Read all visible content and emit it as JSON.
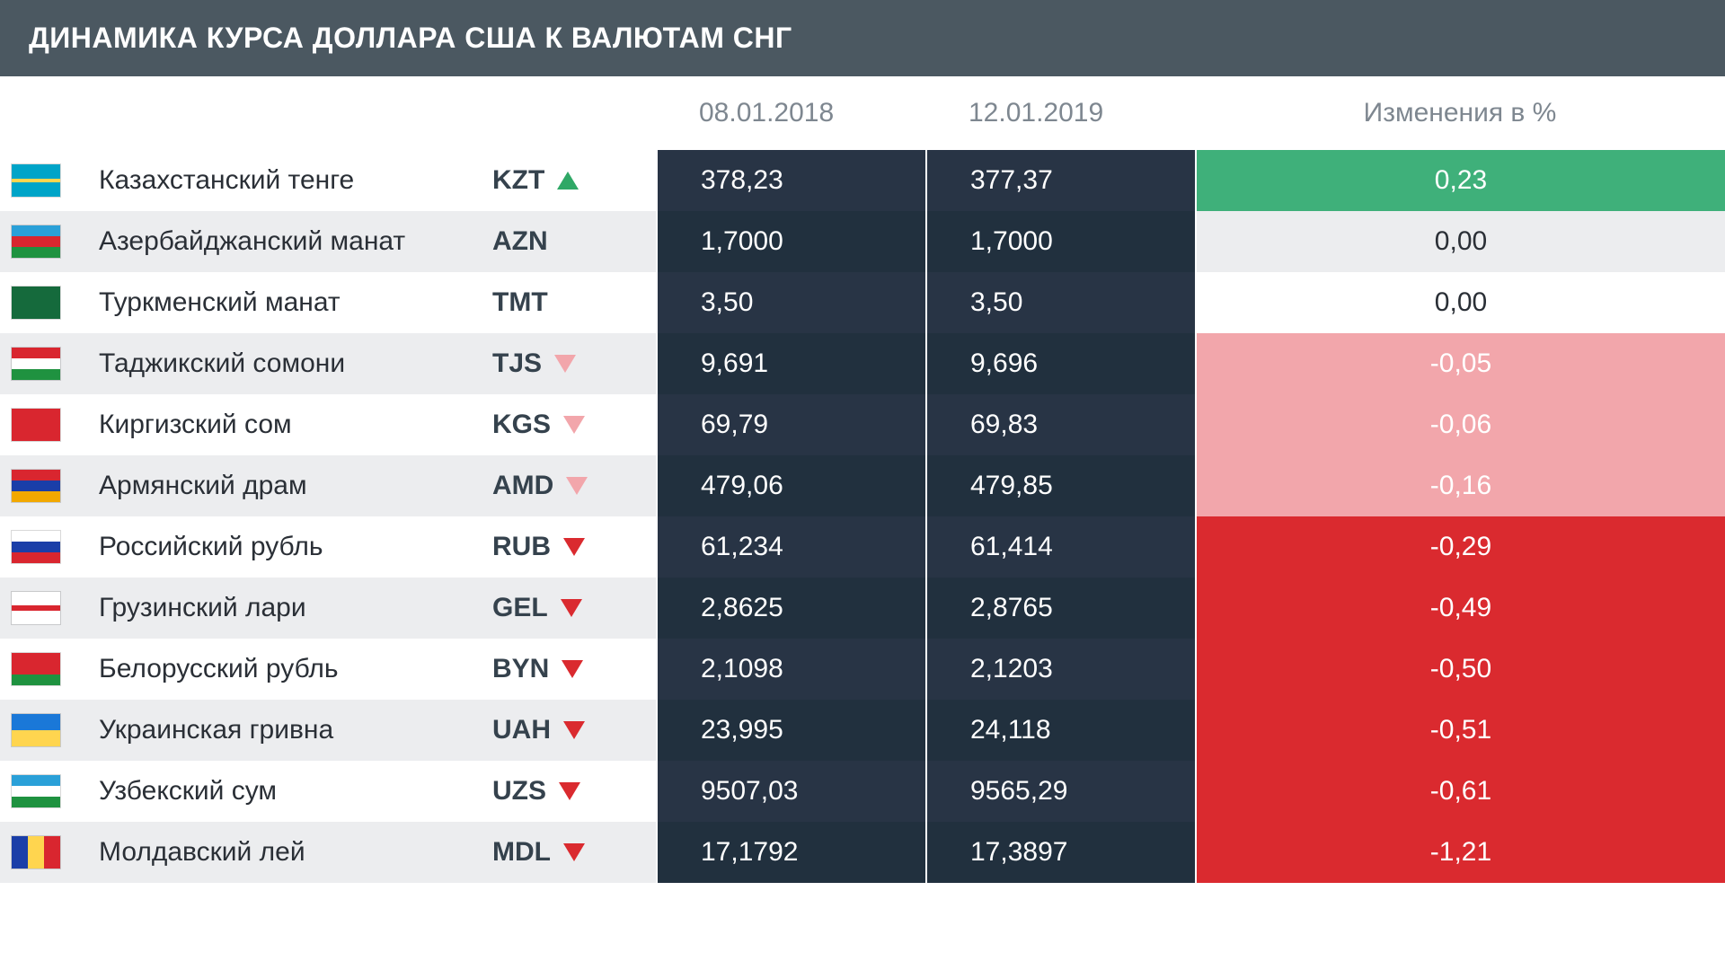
{
  "title": "ДИНАМИКА КУРСА ДОЛЛАРА США К ВАЛЮТАМ СНГ",
  "columns": {
    "date1": "08.01.2018",
    "date2": "12.01.2019",
    "change": "Изменения в %"
  },
  "colors": {
    "header_bg": "#4b5861",
    "stripe_a": "#ffffff",
    "stripe_b": "#ecedef",
    "value_bg_a": "#283445",
    "value_bg_b": "#21303e",
    "text_dark": "#2a2f36",
    "text_muted": "#7e8790",
    "arrow_up": "#2fa866",
    "arrow_down_light": "#f2a6ab",
    "arrow_down_dark": "#da2a2f",
    "change_up_bg": "#3fb07a",
    "change_up_text": "#ffffff",
    "change_neutral_text": "#2a2f36",
    "change_down_light_bg": "#f2a6ab",
    "change_down_light_text": "#ffffff",
    "change_down_dark_bg": "#da2a2f",
    "change_down_dark_text": "#ffffff"
  },
  "rows": [
    {
      "name": "Казахстанский тенге",
      "code": "KZT",
      "arrow": "up",
      "arrow_color": "#2fa866",
      "v1": "378,23",
      "v2": "377,37",
      "change": "0,23",
      "change_bg": "#3fb07a",
      "change_text": "#ffffff",
      "flag_bands": [
        {
          "bg": "#00a4c8",
          "flex": 1
        },
        {
          "bg": "#ffd54f",
          "flex": 0.3
        },
        {
          "bg": "#00a4c8",
          "flex": 1
        }
      ]
    },
    {
      "name": "Азербайджанский манат",
      "code": "AZN",
      "arrow": "none",
      "arrow_color": "",
      "v1": "1,7000",
      "v2": "1,7000",
      "change": "0,00",
      "change_bg": "transparent",
      "change_text": "#2a2f36",
      "flag_bands": [
        {
          "bg": "#2aa0d8",
          "flex": 1
        },
        {
          "bg": "#d9262f",
          "flex": 1
        },
        {
          "bg": "#1f9240",
          "flex": 1
        }
      ]
    },
    {
      "name": "Туркменский манат",
      "code": "TMT",
      "arrow": "none",
      "arrow_color": "",
      "v1": "3,50",
      "v2": "3,50",
      "change": "0,00",
      "change_bg": "transparent",
      "change_text": "#2a2f36",
      "flag_bands": [
        {
          "bg": "#156a3c",
          "flex": 1
        }
      ]
    },
    {
      "name": "Таджикский сомони",
      "code": "TJS",
      "arrow": "down",
      "arrow_color": "#f2a6ab",
      "v1": "9,691",
      "v2": "9,696",
      "change": "-0,05",
      "change_bg": "#f2a6ab",
      "change_text": "#ffffff",
      "flag_bands": [
        {
          "bg": "#d9262f",
          "flex": 1
        },
        {
          "bg": "#ffffff",
          "flex": 1
        },
        {
          "bg": "#1f9240",
          "flex": 1
        }
      ]
    },
    {
      "name": "Киргизский сом",
      "code": "KGS",
      "arrow": "down",
      "arrow_color": "#f2a6ab",
      "v1": "69,79",
      "v2": "69,83",
      "change": "-0,06",
      "change_bg": "#f2a6ab",
      "change_text": "#ffffff",
      "flag_bands": [
        {
          "bg": "#d9262f",
          "flex": 1
        }
      ]
    },
    {
      "name": "Армянский драм",
      "code": "AMD",
      "arrow": "down",
      "arrow_color": "#f2a6ab",
      "v1": "479,06",
      "v2": "479,85",
      "change": "-0,16",
      "change_bg": "#f2a6ab",
      "change_text": "#ffffff",
      "flag_bands": [
        {
          "bg": "#d9262f",
          "flex": 1
        },
        {
          "bg": "#1a3ea8",
          "flex": 1
        },
        {
          "bg": "#f2a800",
          "flex": 1
        }
      ]
    },
    {
      "name": "Российский рубль",
      "code": "RUB",
      "arrow": "down",
      "arrow_color": "#da2a2f",
      "v1": "61,234",
      "v2": "61,414",
      "change": "-0,29",
      "change_bg": "#da2a2f",
      "change_text": "#ffffff",
      "flag_bands": [
        {
          "bg": "#ffffff",
          "flex": 1
        },
        {
          "bg": "#1a3ea8",
          "flex": 1
        },
        {
          "bg": "#d9262f",
          "flex": 1
        }
      ]
    },
    {
      "name": "Грузинский лари",
      "code": "GEL",
      "arrow": "down",
      "arrow_color": "#da2a2f",
      "v1": "2,8625",
      "v2": "2,8765",
      "change": "-0,49",
      "change_bg": "#da2a2f",
      "change_text": "#ffffff",
      "flag_bands": [
        {
          "bg": "#ffffff",
          "flex": 1
        },
        {
          "bg": "#d9262f",
          "flex": 0.4
        },
        {
          "bg": "#ffffff",
          "flex": 1
        }
      ]
    },
    {
      "name": "Белорусский рубль",
      "code": "BYN",
      "arrow": "down",
      "arrow_color": "#da2a2f",
      "v1": "2,1098",
      "v2": "2,1203",
      "change": "-0,50",
      "change_bg": "#da2a2f",
      "change_text": "#ffffff",
      "flag_bands": [
        {
          "bg": "#d9262f",
          "flex": 2
        },
        {
          "bg": "#1f9240",
          "flex": 1
        }
      ]
    },
    {
      "name": "Украинская гривна",
      "code": "UAH",
      "arrow": "down",
      "arrow_color": "#da2a2f",
      "v1": "23,995",
      "v2": "24,118",
      "change": "-0,51",
      "change_bg": "#da2a2f",
      "change_text": "#ffffff",
      "flag_bands": [
        {
          "bg": "#1a78d8",
          "flex": 1
        },
        {
          "bg": "#ffd54f",
          "flex": 1
        }
      ]
    },
    {
      "name": "Узбекский сум",
      "code": "UZS",
      "arrow": "down",
      "arrow_color": "#da2a2f",
      "v1": "9507,03",
      "v2": "9565,29",
      "change": "-0,61",
      "change_bg": "#da2a2f",
      "change_text": "#ffffff",
      "flag_bands": [
        {
          "bg": "#2aa0d8",
          "flex": 1
        },
        {
          "bg": "#ffffff",
          "flex": 1
        },
        {
          "bg": "#1f9240",
          "flex": 1
        }
      ]
    },
    {
      "name": "Молдавский лей",
      "code": "MDL",
      "arrow": "down",
      "arrow_color": "#da2a2f",
      "v1": "17,1792",
      "v2": "17,3897",
      "change": "-1,21",
      "change_bg": "#da2a2f",
      "change_text": "#ffffff",
      "flag_bands": [
        {
          "bg": "#1a3ea8",
          "flex": 1
        },
        {
          "bg": "#ffd54f",
          "flex": 1
        },
        {
          "bg": "#d9262f",
          "flex": 1
        }
      ],
      "flag_vertical": true
    }
  ]
}
